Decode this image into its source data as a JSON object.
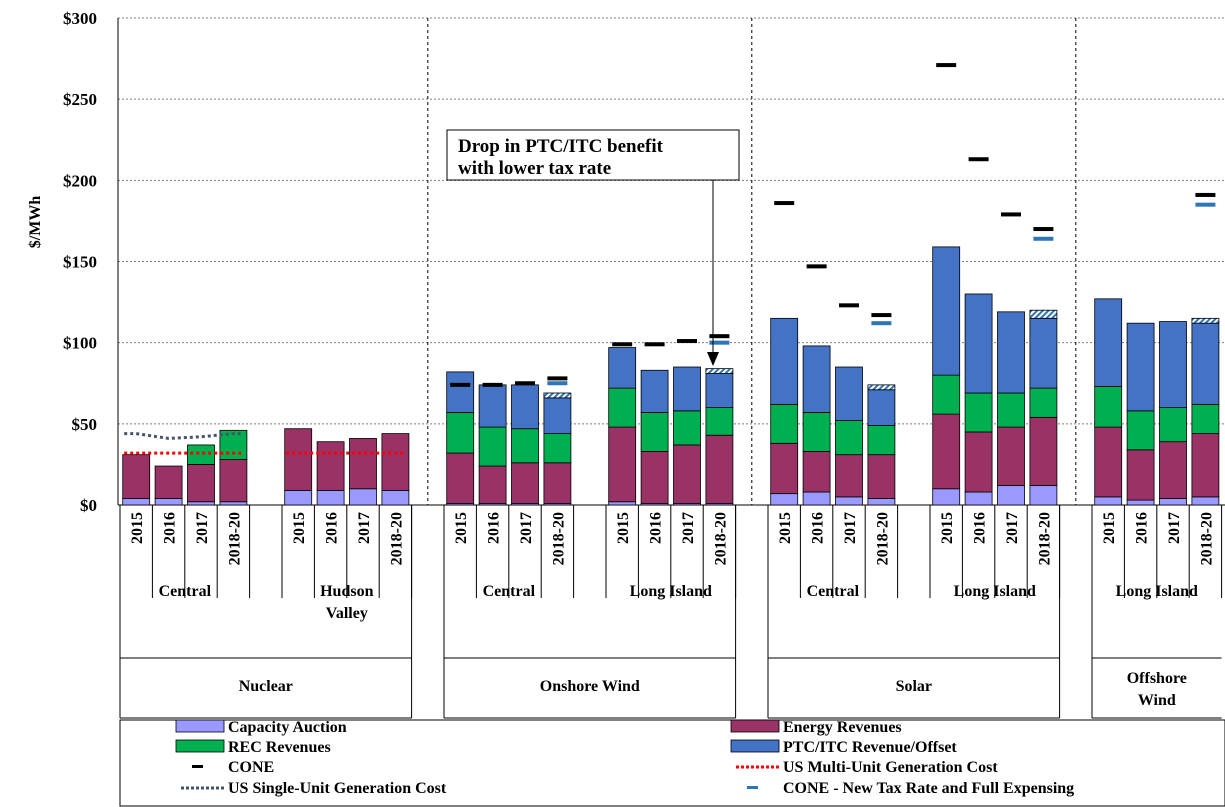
{
  "chart_data": {
    "type": "bar",
    "ylabel": "$/MWh",
    "ylim": [
      0,
      300
    ],
    "y_ticks": [
      "$0",
      "$50",
      "$100",
      "$150",
      "$200",
      "$250",
      "$300"
    ],
    "y_tick_values": [
      0,
      50,
      100,
      150,
      200,
      250,
      300
    ],
    "grid": true,
    "colors": {
      "capacity": "#9999ff",
      "energy": "#993366",
      "rec": "#00b050",
      "ptc": "#4472c4",
      "ptc_hatch": "#bdd7ee",
      "cone": "#000000",
      "cone_new": "#2e75b6",
      "us_multi": "#ff0000",
      "us_single": "#44546a"
    },
    "annotation": {
      "line1": "Drop in PTC/ITC benefit",
      "line2": "with lower tax rate"
    },
    "technologies": [
      {
        "name": "Nuclear",
        "name_lines": [
          "Nuclear"
        ],
        "zones": [
          {
            "name": "Central",
            "name_lines": [
              "Central"
            ],
            "us_multi": [
              32,
              32,
              32,
              32
            ],
            "us_single": [
              44,
              41,
              42,
              44
            ],
            "bars": [
              {
                "year": "2015",
                "capacity": 4,
                "energy": 27,
                "rec": 0,
                "ptc": 0,
                "hatch": 0,
                "cone": null,
                "cone_new": null
              },
              {
                "year": "2016",
                "capacity": 4,
                "energy": 20,
                "rec": 0,
                "ptc": 0,
                "hatch": 0,
                "cone": null,
                "cone_new": null
              },
              {
                "year": "2017",
                "capacity": 2,
                "energy": 23,
                "rec": 12,
                "ptc": 0,
                "hatch": 0,
                "cone": null,
                "cone_new": null
              },
              {
                "year": "2018-20",
                "capacity": 2,
                "energy": 26,
                "rec": 18,
                "ptc": 0,
                "hatch": 0,
                "cone": null,
                "cone_new": null
              }
            ]
          },
          {
            "name": "Hudson Valley",
            "name_lines": [
              "Hudson",
              "Valley"
            ],
            "us_multi": [
              32,
              32,
              32,
              32
            ],
            "us_single": null,
            "bars": [
              {
                "year": "2015",
                "capacity": 9,
                "energy": 38,
                "rec": 0,
                "ptc": 0,
                "hatch": 0,
                "cone": null,
                "cone_new": null
              },
              {
                "year": "2016",
                "capacity": 9,
                "energy": 30,
                "rec": 0,
                "ptc": 0,
                "hatch": 0,
                "cone": null,
                "cone_new": null
              },
              {
                "year": "2017",
                "capacity": 10,
                "energy": 31,
                "rec": 0,
                "ptc": 0,
                "hatch": 0,
                "cone": null,
                "cone_new": null
              },
              {
                "year": "2018-20",
                "capacity": 9,
                "energy": 35,
                "rec": 0,
                "ptc": 0,
                "hatch": 0,
                "cone": null,
                "cone_new": null
              }
            ]
          }
        ]
      },
      {
        "name": "Onshore Wind",
        "name_lines": [
          "Onshore Wind"
        ],
        "zones": [
          {
            "name": "Central",
            "name_lines": [
              "Central"
            ],
            "us_multi": null,
            "us_single": null,
            "bars": [
              {
                "year": "2015",
                "capacity": 1,
                "energy": 31,
                "rec": 25,
                "ptc": 25,
                "hatch": 0,
                "cone": 74,
                "cone_new": null
              },
              {
                "year": "2016",
                "capacity": 1,
                "energy": 23,
                "rec": 24,
                "ptc": 26,
                "hatch": 0,
                "cone": 74,
                "cone_new": null
              },
              {
                "year": "2017",
                "capacity": 1,
                "energy": 25,
                "rec": 21,
                "ptc": 27,
                "hatch": 0,
                "cone": 75,
                "cone_new": null
              },
              {
                "year": "2018-20",
                "capacity": 1,
                "energy": 25,
                "rec": 18,
                "ptc": 22,
                "hatch": 3,
                "cone": 78,
                "cone_new": 75
              }
            ]
          },
          {
            "name": "Long Island",
            "name_lines": [
              "Long Island"
            ],
            "us_multi": null,
            "us_single": null,
            "bars": [
              {
                "year": "2015",
                "capacity": 2,
                "energy": 46,
                "rec": 24,
                "ptc": 25,
                "hatch": 0,
                "cone": 99,
                "cone_new": null
              },
              {
                "year": "2016",
                "capacity": 1,
                "energy": 32,
                "rec": 24,
                "ptc": 26,
                "hatch": 0,
                "cone": 99,
                "cone_new": null
              },
              {
                "year": "2017",
                "capacity": 1,
                "energy": 36,
                "rec": 21,
                "ptc": 27,
                "hatch": 0,
                "cone": 101,
                "cone_new": null
              },
              {
                "year": "2018-20",
                "capacity": 1,
                "energy": 42,
                "rec": 17,
                "ptc": 21,
                "hatch": 3,
                "cone": 104,
                "cone_new": 100
              }
            ]
          }
        ]
      },
      {
        "name": "Solar",
        "name_lines": [
          "Solar"
        ],
        "zones": [
          {
            "name": "Central",
            "name_lines": [
              "Central"
            ],
            "us_multi": null,
            "us_single": null,
            "bars": [
              {
                "year": "2015",
                "capacity": 7,
                "energy": 31,
                "rec": 24,
                "ptc": 53,
                "hatch": 0,
                "cone": 186,
                "cone_new": null
              },
              {
                "year": "2016",
                "capacity": 8,
                "energy": 25,
                "rec": 24,
                "ptc": 41,
                "hatch": 0,
                "cone": 147,
                "cone_new": null
              },
              {
                "year": "2017",
                "capacity": 5,
                "energy": 26,
                "rec": 21,
                "ptc": 33,
                "hatch": 0,
                "cone": 123,
                "cone_new": null
              },
              {
                "year": "2018-20",
                "capacity": 4,
                "energy": 27,
                "rec": 18,
                "ptc": 22,
                "hatch": 3,
                "cone": 117,
                "cone_new": 112
              }
            ]
          },
          {
            "name": "Long Island",
            "name_lines": [
              "Long Island"
            ],
            "us_multi": null,
            "us_single": null,
            "bars": [
              {
                "year": "2015",
                "capacity": 10,
                "energy": 46,
                "rec": 24,
                "ptc": 79,
                "hatch": 0,
                "cone": 271,
                "cone_new": null
              },
              {
                "year": "2016",
                "capacity": 8,
                "energy": 37,
                "rec": 24,
                "ptc": 61,
                "hatch": 0,
                "cone": 213,
                "cone_new": null
              },
              {
                "year": "2017",
                "capacity": 12,
                "energy": 36,
                "rec": 21,
                "ptc": 50,
                "hatch": 0,
                "cone": 179,
                "cone_new": null
              },
              {
                "year": "2018-20",
                "capacity": 12,
                "energy": 42,
                "rec": 18,
                "ptc": 43,
                "hatch": 5,
                "cone": 170,
                "cone_new": 164
              }
            ]
          }
        ]
      },
      {
        "name": "Offshore Wind",
        "name_lines": [
          "Offshore",
          "Wind"
        ],
        "zones": [
          {
            "name": "Long Island",
            "name_lines": [
              "Long Island"
            ],
            "us_multi": null,
            "us_single": null,
            "bars": [
              {
                "year": "2015",
                "capacity": 5,
                "energy": 43,
                "rec": 25,
                "ptc": 54,
                "hatch": 0,
                "cone": null,
                "cone_new": null
              },
              {
                "year": "2016",
                "capacity": 3,
                "energy": 31,
                "rec": 24,
                "ptc": 54,
                "hatch": 0,
                "cone": null,
                "cone_new": null
              },
              {
                "year": "2017",
                "capacity": 4,
                "energy": 35,
                "rec": 21,
                "ptc": 53,
                "hatch": 0,
                "cone": null,
                "cone_new": null
              },
              {
                "year": "2018-20",
                "capacity": 5,
                "energy": 39,
                "rec": 18,
                "ptc": 50,
                "hatch": 3,
                "cone": 191,
                "cone_new": 185
              }
            ]
          }
        ]
      }
    ],
    "legend": [
      {
        "key": "capacity",
        "label": "Capacity Auction",
        "kind": "box",
        "color": "#9999ff"
      },
      {
        "key": "energy",
        "label": "Energy Revenues",
        "kind": "box",
        "color": "#993366"
      },
      {
        "key": "rec",
        "label": "REC Revenues",
        "kind": "box",
        "color": "#00b050"
      },
      {
        "key": "ptc",
        "label": "PTC/ITC Revenue/Offset",
        "kind": "box",
        "color": "#4472c4"
      },
      {
        "key": "cone",
        "label": "CONE",
        "kind": "dash",
        "color": "#000000"
      },
      {
        "key": "us_multi",
        "label": "US Multi-Unit Generation Cost",
        "kind": "dotline",
        "color": "#ff0000"
      },
      {
        "key": "us_single",
        "label": "US Single-Unit Generation Cost",
        "kind": "dotline",
        "color": "#44546a"
      },
      {
        "key": "cone_new",
        "label": "CONE - New Tax Rate and Full Expensing",
        "kind": "dash",
        "color": "#2e75b6"
      }
    ]
  }
}
